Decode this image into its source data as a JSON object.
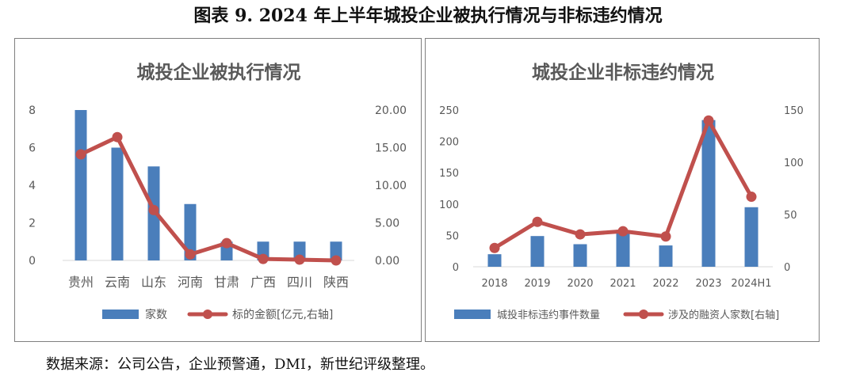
{
  "figure": {
    "title": "图表 9.  2024 年上半年城投企业被执行情况与非标违约情况",
    "source": "数据来源：公司公告，企业预警通，DMI，新世纪评级整理。"
  },
  "colors": {
    "bar": "#4a7ebb",
    "line": "#c0504d",
    "axis_text": "#595959",
    "title_text": "#595959",
    "grid": "#d9d9d9"
  },
  "chart_data": [
    {
      "type": "bar",
      "title": "城投企业被执行情况",
      "categories": [
        "贵州",
        "云南",
        "山东",
        "河南",
        "甘肃",
        "广西",
        "四川",
        "陕西"
      ],
      "series": [
        {
          "name": "家数",
          "type": "bar",
          "axis": "left",
          "values": [
            8,
            6,
            5,
            3,
            1,
            1,
            1,
            1
          ]
        },
        {
          "name": "标的金额[亿元,右轴]",
          "type": "line",
          "axis": "right",
          "values": [
            14.1,
            16.4,
            6.7,
            0.8,
            2.3,
            0.2,
            0.1,
            0.0
          ]
        }
      ],
      "y_left": {
        "min": 0,
        "max": 8,
        "ticks": [
          "0",
          "2",
          "4",
          "6",
          "8"
        ]
      },
      "y_right": {
        "min": 0,
        "max": 20,
        "ticks": [
          "0.00",
          "5.00",
          "10.00",
          "15.00",
          "20.00"
        ]
      },
      "legend_position": "bottom"
    },
    {
      "type": "bar",
      "title": "城投企业非标违约情况",
      "categories": [
        "2018",
        "2019",
        "2020",
        "2021",
        "2022",
        "2023",
        "2024H1"
      ],
      "series": [
        {
          "name": "城投非标违约事件数量",
          "type": "bar",
          "axis": "left",
          "values": [
            20,
            49,
            36,
            55,
            34,
            234,
            95
          ]
        },
        {
          "name": "涉及的融资人家数[右轴]",
          "type": "line",
          "axis": "right",
          "values": [
            18,
            43,
            31,
            34,
            29,
            140,
            67
          ]
        }
      ],
      "y_left": {
        "min": 0,
        "max": 250,
        "ticks": [
          "0",
          "50",
          "100",
          "150",
          "200",
          "250"
        ]
      },
      "y_right": {
        "min": 0,
        "max": 150,
        "ticks": [
          "0",
          "50",
          "100",
          "150"
        ]
      },
      "legend_position": "bottom"
    }
  ]
}
